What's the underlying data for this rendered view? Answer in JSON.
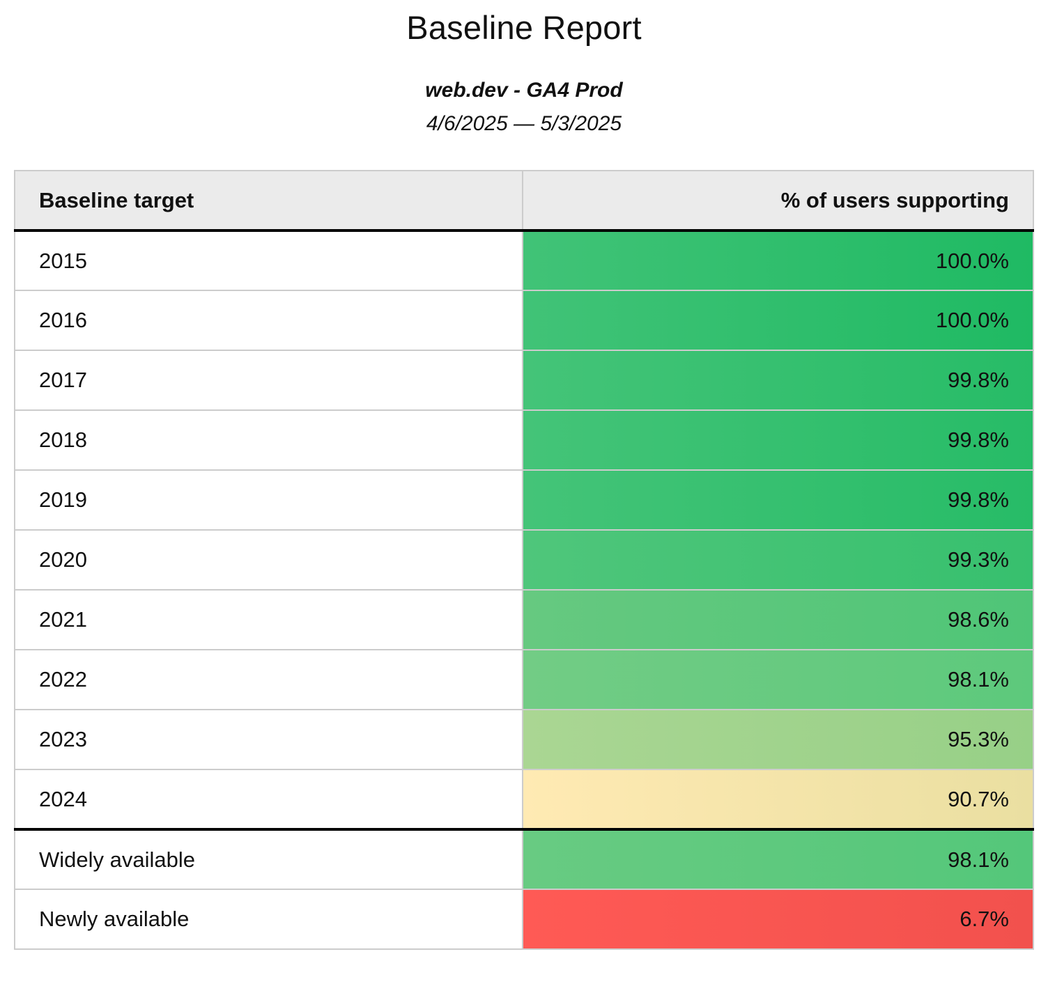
{
  "report": {
    "title": "Baseline Report",
    "subtitle": "web.dev - GA4 Prod",
    "date_range": "4/6/2025 — 5/3/2025"
  },
  "table": {
    "columns": [
      "Baseline target",
      "% of users supporting"
    ],
    "rows": [
      {
        "label": "2015",
        "value": "100.0%",
        "color_left": "#41c377",
        "color_right": "#1fba63",
        "separator_above": false
      },
      {
        "label": "2016",
        "value": "100.0%",
        "color_left": "#41c377",
        "color_right": "#1fba63",
        "separator_above": false
      },
      {
        "label": "2017",
        "value": "99.8%",
        "color_left": "#44c478",
        "color_right": "#27bc67",
        "separator_above": false
      },
      {
        "label": "2018",
        "value": "99.8%",
        "color_left": "#44c478",
        "color_right": "#27bc67",
        "separator_above": false
      },
      {
        "label": "2019",
        "value": "99.8%",
        "color_left": "#44c478",
        "color_right": "#27bc67",
        "separator_above": false
      },
      {
        "label": "2020",
        "value": "99.3%",
        "color_left": "#4fc67b",
        "color_right": "#37c06e",
        "separator_above": false
      },
      {
        "label": "2021",
        "value": "98.6%",
        "color_left": "#66c980",
        "color_right": "#4fc577",
        "separator_above": false
      },
      {
        "label": "2022",
        "value": "98.1%",
        "color_left": "#72cc85",
        "color_right": "#5dc97c",
        "separator_above": false
      },
      {
        "label": "2023",
        "value": "95.3%",
        "color_left": "#aad693",
        "color_right": "#97d087",
        "separator_above": false
      },
      {
        "label": "2024",
        "value": "90.7%",
        "color_left": "#ffeab3",
        "color_right": "#eadfa1",
        "separator_above": false
      },
      {
        "label": "Widely available",
        "value": "98.1%",
        "color_left": "#68cb82",
        "color_right": "#54c77a",
        "separator_above": true
      },
      {
        "label": "Newly available",
        "value": "6.7%",
        "color_left": "#ff5a55",
        "color_right": "#f2514d",
        "separator_above": false
      }
    ]
  },
  "chart_data": {
    "type": "table",
    "title": "Baseline Report",
    "subtitle": "web.dev - GA4 Prod",
    "date_range": "4/6/2025 — 5/3/2025",
    "columns": [
      "Baseline target",
      "% of users supporting"
    ],
    "categories": [
      "2015",
      "2016",
      "2017",
      "2018",
      "2019",
      "2020",
      "2021",
      "2022",
      "2023",
      "2024",
      "Widely available",
      "Newly available"
    ],
    "values": [
      100.0,
      100.0,
      99.8,
      99.8,
      99.8,
      99.3,
      98.6,
      98.1,
      95.3,
      90.7,
      98.1,
      6.7
    ],
    "value_unit": "%",
    "color_scale": "red-yellow-green heatmap on value cells",
    "layout": "two-column table; values right-aligned; thick rule under header and above summary rows"
  }
}
